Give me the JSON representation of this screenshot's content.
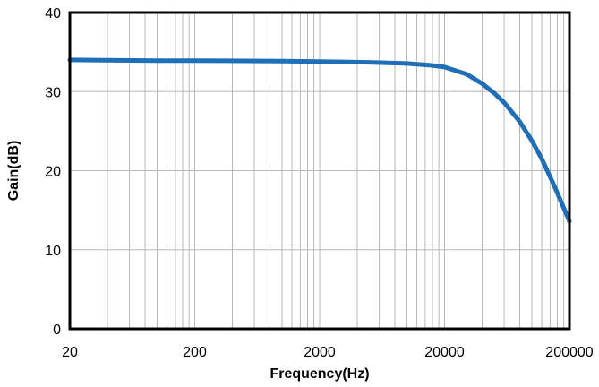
{
  "chart_data": {
    "type": "line",
    "title": "",
    "xlabel": "Frequency(Hz)",
    "ylabel": "Gain(dB)",
    "x_scale": "log",
    "xlim": [
      20,
      200000
    ],
    "ylim": [
      0,
      40
    ],
    "x_ticks": [
      "20",
      "200",
      "2000",
      "20000",
      "200000"
    ],
    "y_ticks": [
      "0",
      "10",
      "20",
      "30",
      "40"
    ],
    "grid": true,
    "line_color": "#1f6eb8",
    "series": [
      {
        "x": [
          20,
          50,
          100,
          200,
          500,
          1000,
          2000,
          5000,
          10000,
          15000,
          20000,
          30000,
          40000,
          50000,
          60000,
          80000,
          100000,
          120000,
          150000,
          180000,
          200000
        ],
        "y": [
          34.0,
          33.95,
          33.92,
          33.9,
          33.88,
          33.86,
          33.8,
          33.7,
          33.55,
          33.35,
          33.1,
          32.2,
          31.0,
          29.8,
          28.6,
          26.2,
          23.8,
          21.5,
          18.2,
          15.3,
          13.6
        ]
      }
    ]
  }
}
